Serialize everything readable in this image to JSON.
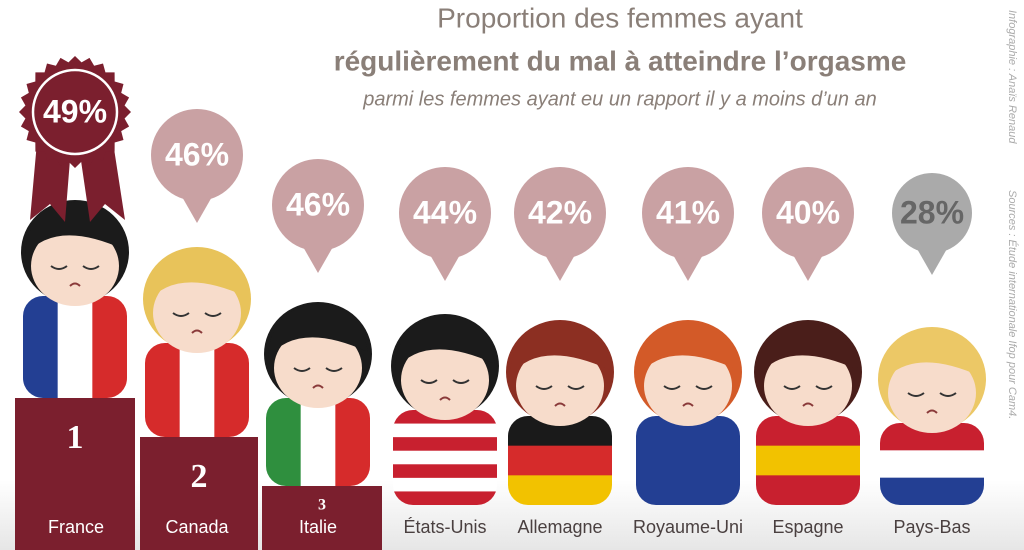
{
  "chart_data": {
    "type": "pictogram",
    "title": "Proportion des femmes ayant",
    "subtitle": "régulièrement du mal à atteindre l’orgasme",
    "note": "parmi les femmes ayant eu un rapport il y a moins d’un an",
    "categories": [
      "France",
      "Canada",
      "Italie",
      "États-Unis",
      "Allemagne",
      "Royaume-Uni",
      "Espagne",
      "Pays-Bas"
    ],
    "values": [
      49,
      46,
      46,
      44,
      42,
      41,
      40,
      28
    ],
    "value_labels": [
      "49%",
      "46%",
      "46%",
      "44%",
      "42%",
      "41%",
      "40%",
      "28%"
    ],
    "colors": [
      "#7b1f2e",
      "#c9a1a3",
      "#c9a1a3",
      "#c9a1a3",
      "#c9a1a3",
      "#c9a1a3",
      "#c9a1a3",
      "#aaaaaa"
    ],
    "podium": [
      1,
      2,
      3
    ],
    "credit": "Infographie : Anaïs Renaud",
    "source": "Sources : Étude internationale Ifop pour Cam4."
  }
}
